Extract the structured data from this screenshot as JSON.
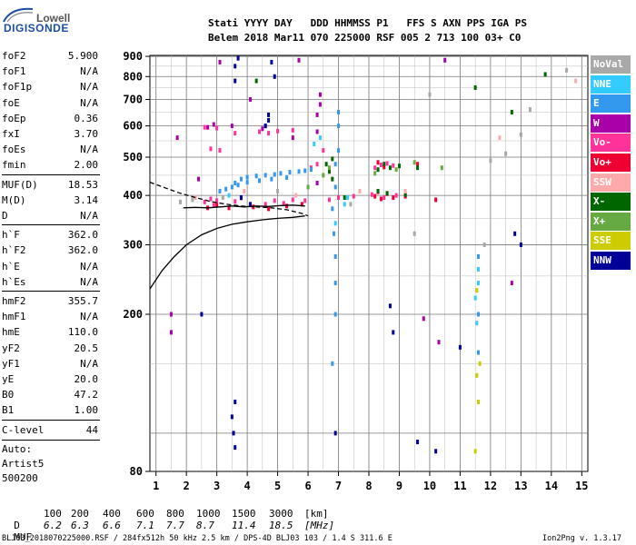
{
  "logo": {
    "line1": "Lowell",
    "line2": "DIGISONDE"
  },
  "header": {
    "row1": "Stati YYYY DAY   DDD HHMMSS P1   FFS S AXN PPS IGA PS",
    "row2": "Belem 2018 Mar11 070 225000 RSF 005 2 713 100 03+ C0"
  },
  "params": [
    {
      "label": "foF2",
      "value": "5.900"
    },
    {
      "label": "foF1",
      "value": "N/A"
    },
    {
      "label": "foF1p",
      "value": "N/A"
    },
    {
      "label": "foE",
      "value": "N/A"
    },
    {
      "label": "foEp",
      "value": "0.36"
    },
    {
      "label": "fxI",
      "value": "3.70"
    },
    {
      "label": "foEs",
      "value": "N/A"
    },
    {
      "label": "fmin",
      "value": "2.00"
    },
    {
      "label": "MUF(D)",
      "value": "18.53"
    },
    {
      "label": "M(D)",
      "value": "3.14"
    },
    {
      "label": "D",
      "value": "N/A"
    },
    {
      "label": "h`F",
      "value": "362.0"
    },
    {
      "label": "h`F2",
      "value": "362.0"
    },
    {
      "label": "h`E",
      "value": "N/A"
    },
    {
      "label": "h`Es",
      "value": "N/A"
    },
    {
      "label": "hmF2",
      "value": "355.7"
    },
    {
      "label": "hmF1",
      "value": "N/A"
    },
    {
      "label": "hmE",
      "value": "110.0"
    },
    {
      "label": "yF2",
      "value": "20.5"
    },
    {
      "label": "yF1",
      "value": "N/A"
    },
    {
      "label": "yE",
      "value": "20.0"
    },
    {
      "label": "B0",
      "value": "47.2"
    },
    {
      "label": "B1",
      "value": "1.00"
    },
    {
      "label": "C-level",
      "value": "44"
    }
  ],
  "auto": {
    "line1": "Auto:",
    "line2": "Artist5",
    "line3": "500200"
  },
  "legend": [
    {
      "label": "NoVal",
      "color": "#a8a8a8"
    },
    {
      "label": "NNE",
      "color": "#33ccff"
    },
    {
      "label": "E",
      "color": "#3399ee"
    },
    {
      "label": "W",
      "color": "#aa00aa"
    },
    {
      "label": "Vo-",
      "color": "#ff3399"
    },
    {
      "label": "Vo+",
      "color": "#ee0033"
    },
    {
      "label": "SSW",
      "color": "#ffaaaa"
    },
    {
      "label": "X-",
      "color": "#006600"
    },
    {
      "label": "X+",
      "color": "#66aa44"
    },
    {
      "label": "SSE",
      "color": "#cccc00"
    },
    {
      "label": "NNW",
      "color": "#000099"
    }
  ],
  "muf_table": {
    "d_label": "D",
    "d_values": [
      "100",
      "200",
      "400",
      "600",
      "800",
      "1000",
      "1500",
      "3000",
      "[km]"
    ],
    "muf_label": "MUF",
    "muf_values": [
      "6.2",
      "6.3",
      "6.6",
      "7.1",
      "7.7",
      "8.7",
      "11.4",
      "18.5",
      "[MHz]"
    ]
  },
  "footer": {
    "left": "BLJ03_2018070225000.RSF / 284fx512h 50 kHz 2.5 km / DPS-4D BLJ03 103 / 1.4 S 311.6 E",
    "right": "Ion2Png v. 1.3.17"
  },
  "chart_data": {
    "type": "scatter",
    "title": "",
    "xlabel": "",
    "ylabel": "",
    "xlim": [
      0.8,
      15.2
    ],
    "ylim": [
      80,
      905
    ],
    "y_scale": "log",
    "grid": true,
    "x_ticks": [
      "1",
      "2",
      "3",
      "4",
      "5",
      "6",
      "7",
      "8",
      "9",
      "10",
      "11",
      "12",
      "13",
      "14",
      "15"
    ],
    "y_ticks": [
      "80",
      "200",
      "300",
      "400",
      "500",
      "600",
      "700",
      "800",
      "900"
    ],
    "curves": [
      {
        "style": "solid",
        "x": [
          0.8,
          1.2,
          1.6,
          2.0,
          2.5,
          3.0,
          3.5,
          4.0,
          4.5,
          5.0,
          5.5,
          5.9
        ],
        "y": [
          232,
          258,
          280,
          300,
          318,
          330,
          338,
          343,
          347,
          350,
          352,
          355
        ]
      },
      {
        "style": "solid",
        "x": [
          1.9,
          2.3,
          2.7,
          3.1,
          3.5,
          3.9,
          4.3,
          4.7,
          5.1,
          5.5,
          5.9
        ],
        "y": [
          372,
          373,
          372,
          374,
          376,
          374,
          376,
          375,
          377,
          378,
          376
        ]
      },
      {
        "style": "dashed",
        "x": [
          0.8,
          1.3,
          1.8,
          2.3,
          2.8,
          3.3,
          3.8,
          4.3,
          4.8,
          5.3,
          5.8,
          6.0
        ],
        "y": [
          432,
          418,
          405,
          395,
          386,
          380,
          376,
          374,
          372,
          368,
          360,
          355
        ]
      }
    ],
    "series": [
      {
        "name": "Vo-",
        "color": "#ff3399",
        "points": [
          [
            2.6,
            385
          ],
          [
            2.8,
            392
          ],
          [
            2.9,
            378
          ],
          [
            3.0,
            388
          ],
          [
            3.6,
            386
          ],
          [
            3.8,
            394
          ],
          [
            4.6,
            380
          ],
          [
            4.9,
            388
          ],
          [
            5.2,
            382
          ],
          [
            5.5,
            390
          ],
          [
            5.9,
            388
          ],
          [
            6.7,
            390
          ],
          [
            7.0,
            395
          ],
          [
            7.5,
            398
          ],
          [
            8.1,
            402
          ],
          [
            8.3,
            408
          ],
          [
            8.5,
            395
          ],
          [
            8.9,
            400
          ],
          [
            8.2,
            470
          ],
          [
            8.4,
            478
          ],
          [
            8.6,
            482
          ],
          [
            8.8,
            476
          ],
          [
            6.1,
            470
          ],
          [
            6.3,
            480
          ],
          [
            2.6,
            595
          ],
          [
            3.0,
            592
          ],
          [
            3.6,
            575
          ],
          [
            4.4,
            580
          ],
          [
            4.7,
            575
          ],
          [
            5.0,
            582
          ],
          [
            5.5,
            585
          ],
          [
            6.5,
            520
          ],
          [
            2.8,
            525
          ],
          [
            3.1,
            520
          ]
        ]
      },
      {
        "name": "Vo+",
        "color": "#ee0033",
        "points": [
          [
            2.7,
            372
          ],
          [
            3.0,
            378
          ],
          [
            3.4,
            372
          ],
          [
            4.2,
            374
          ],
          [
            4.7,
            370
          ],
          [
            5.3,
            376
          ],
          [
            5.8,
            380
          ],
          [
            8.2,
            398
          ],
          [
            8.4,
            392
          ],
          [
            8.6,
            404
          ],
          [
            8.8,
            395
          ],
          [
            9.2,
            398
          ],
          [
            8.3,
            485
          ],
          [
            8.5,
            472
          ],
          [
            9.6,
            480
          ],
          [
            10.2,
            390
          ]
        ]
      },
      {
        "name": "W",
        "color": "#aa00aa",
        "points": [
          [
            2.7,
            595
          ],
          [
            2.9,
            605
          ],
          [
            3.5,
            600
          ],
          [
            4.5,
            590
          ],
          [
            4.6,
            600
          ],
          [
            5.5,
            560
          ],
          [
            6.3,
            640
          ],
          [
            6.4,
            680
          ],
          [
            6.4,
            720
          ],
          [
            6.3,
            430
          ],
          [
            6.3,
            580
          ],
          [
            1.7,
            560
          ],
          [
            3.1,
            870
          ],
          [
            4.1,
            700
          ],
          [
            5.7,
            880
          ],
          [
            10.5,
            880
          ],
          [
            10.3,
            170
          ],
          [
            2.4,
            440
          ],
          [
            1.5,
            200
          ],
          [
            1.5,
            180
          ],
          [
            9.8,
            195
          ],
          [
            12.7,
            240
          ]
        ]
      },
      {
        "name": "E",
        "color": "#3399ee",
        "points": [
          [
            3.6,
            430
          ],
          [
            3.8,
            440
          ],
          [
            4.0,
            445
          ],
          [
            4.3,
            448
          ],
          [
            4.6,
            450
          ],
          [
            4.9,
            452
          ],
          [
            5.1,
            455
          ],
          [
            5.4,
            458
          ],
          [
            5.7,
            460
          ],
          [
            5.9,
            462
          ],
          [
            6.1,
            465
          ],
          [
            5.3,
            444
          ],
          [
            4.8,
            440
          ],
          [
            4.4,
            436
          ],
          [
            4.0,
            432
          ],
          [
            3.7,
            425
          ],
          [
            3.5,
            420
          ],
          [
            6.9,
            480
          ],
          [
            6.9,
            420
          ],
          [
            6.8,
            370
          ],
          [
            6.85,
            320
          ],
          [
            6.9,
            280
          ],
          [
            6.9,
            240
          ],
          [
            6.9,
            200
          ],
          [
            6.8,
            150
          ],
          [
            7.0,
            520
          ],
          [
            7.0,
            600
          ],
          [
            7.0,
            650
          ],
          [
            3.1,
            410
          ],
          [
            3.3,
            415
          ],
          [
            11.6,
            200
          ],
          [
            11.6,
            160
          ],
          [
            11.6,
            280
          ]
        ]
      },
      {
        "name": "NNE",
        "color": "#33ccff",
        "points": [
          [
            7.2,
            380
          ],
          [
            7.3,
            395
          ],
          [
            6.9,
            340
          ],
          [
            3.4,
            400
          ],
          [
            11.5,
            220
          ],
          [
            11.6,
            240
          ],
          [
            11.55,
            190
          ],
          [
            11.6,
            260
          ],
          [
            6.4,
            560
          ],
          [
            6.2,
            540
          ]
        ]
      },
      {
        "name": "X-",
        "color": "#006600",
        "points": [
          [
            6.6,
            480
          ],
          [
            6.8,
            495
          ],
          [
            6.7,
            460
          ],
          [
            8.3,
            465
          ],
          [
            8.5,
            480
          ],
          [
            8.7,
            470
          ],
          [
            9.0,
            475
          ],
          [
            9.6,
            470
          ],
          [
            8.3,
            410
          ],
          [
            8.6,
            405
          ],
          [
            9.2,
            402
          ],
          [
            7.2,
            395
          ],
          [
            6.8,
            440
          ],
          [
            4.3,
            780
          ],
          [
            11.5,
            750
          ],
          [
            12.7,
            650
          ],
          [
            13.8,
            810
          ]
        ]
      },
      {
        "name": "X+",
        "color": "#66aa44",
        "points": [
          [
            6.5,
            450
          ],
          [
            6.7,
            470
          ],
          [
            8.2,
            455
          ],
          [
            8.9,
            465
          ],
          [
            9.5,
            485
          ],
          [
            6.0,
            420
          ],
          [
            10.4,
            470
          ]
        ]
      },
      {
        "name": "NNW",
        "color": "#000099",
        "points": [
          [
            3.5,
            110
          ],
          [
            3.55,
            100
          ],
          [
            3.6,
            92
          ],
          [
            3.6,
            120
          ],
          [
            3.7,
            890
          ],
          [
            3.6,
            850
          ],
          [
            3.6,
            780
          ],
          [
            4.7,
            620
          ],
          [
            4.6,
            600
          ],
          [
            4.7,
            640
          ],
          [
            4.9,
            800
          ],
          [
            4.8,
            870
          ],
          [
            2.5,
            200
          ],
          [
            3.8,
            395
          ],
          [
            8.7,
            210
          ],
          [
            8.8,
            180
          ],
          [
            9.6,
            95
          ],
          [
            11.0,
            165
          ],
          [
            10.2,
            90
          ],
          [
            12.8,
            320
          ],
          [
            13.0,
            300
          ],
          [
            6.9,
            100
          ],
          [
            4.1,
            380
          ]
        ]
      },
      {
        "name": "NoVal",
        "color": "#a8a8a8",
        "points": [
          [
            1.8,
            385
          ],
          [
            2.2,
            390
          ],
          [
            3.2,
            395
          ],
          [
            5.0,
            410
          ],
          [
            7.4,
            380
          ],
          [
            12.0,
            490
          ],
          [
            12.5,
            510
          ],
          [
            13.0,
            570
          ],
          [
            13.3,
            660
          ],
          [
            14.5,
            830
          ],
          [
            10.0,
            720
          ],
          [
            9.5,
            320
          ],
          [
            11.8,
            300
          ]
        ]
      },
      {
        "name": "SSW",
        "color": "#ffaaaa",
        "points": [
          [
            2.3,
            395
          ],
          [
            3.9,
            410
          ],
          [
            5.6,
            400
          ],
          [
            7.7,
            410
          ],
          [
            9.2,
            410
          ],
          [
            12.3,
            560
          ],
          [
            14.8,
            780
          ]
        ]
      },
      {
        "name": "SSE",
        "color": "#cccc00",
        "points": [
          [
            11.55,
            140
          ],
          [
            11.6,
            120
          ],
          [
            11.65,
            150
          ],
          [
            11.5,
            90
          ],
          [
            11.55,
            230
          ]
        ]
      }
    ]
  }
}
